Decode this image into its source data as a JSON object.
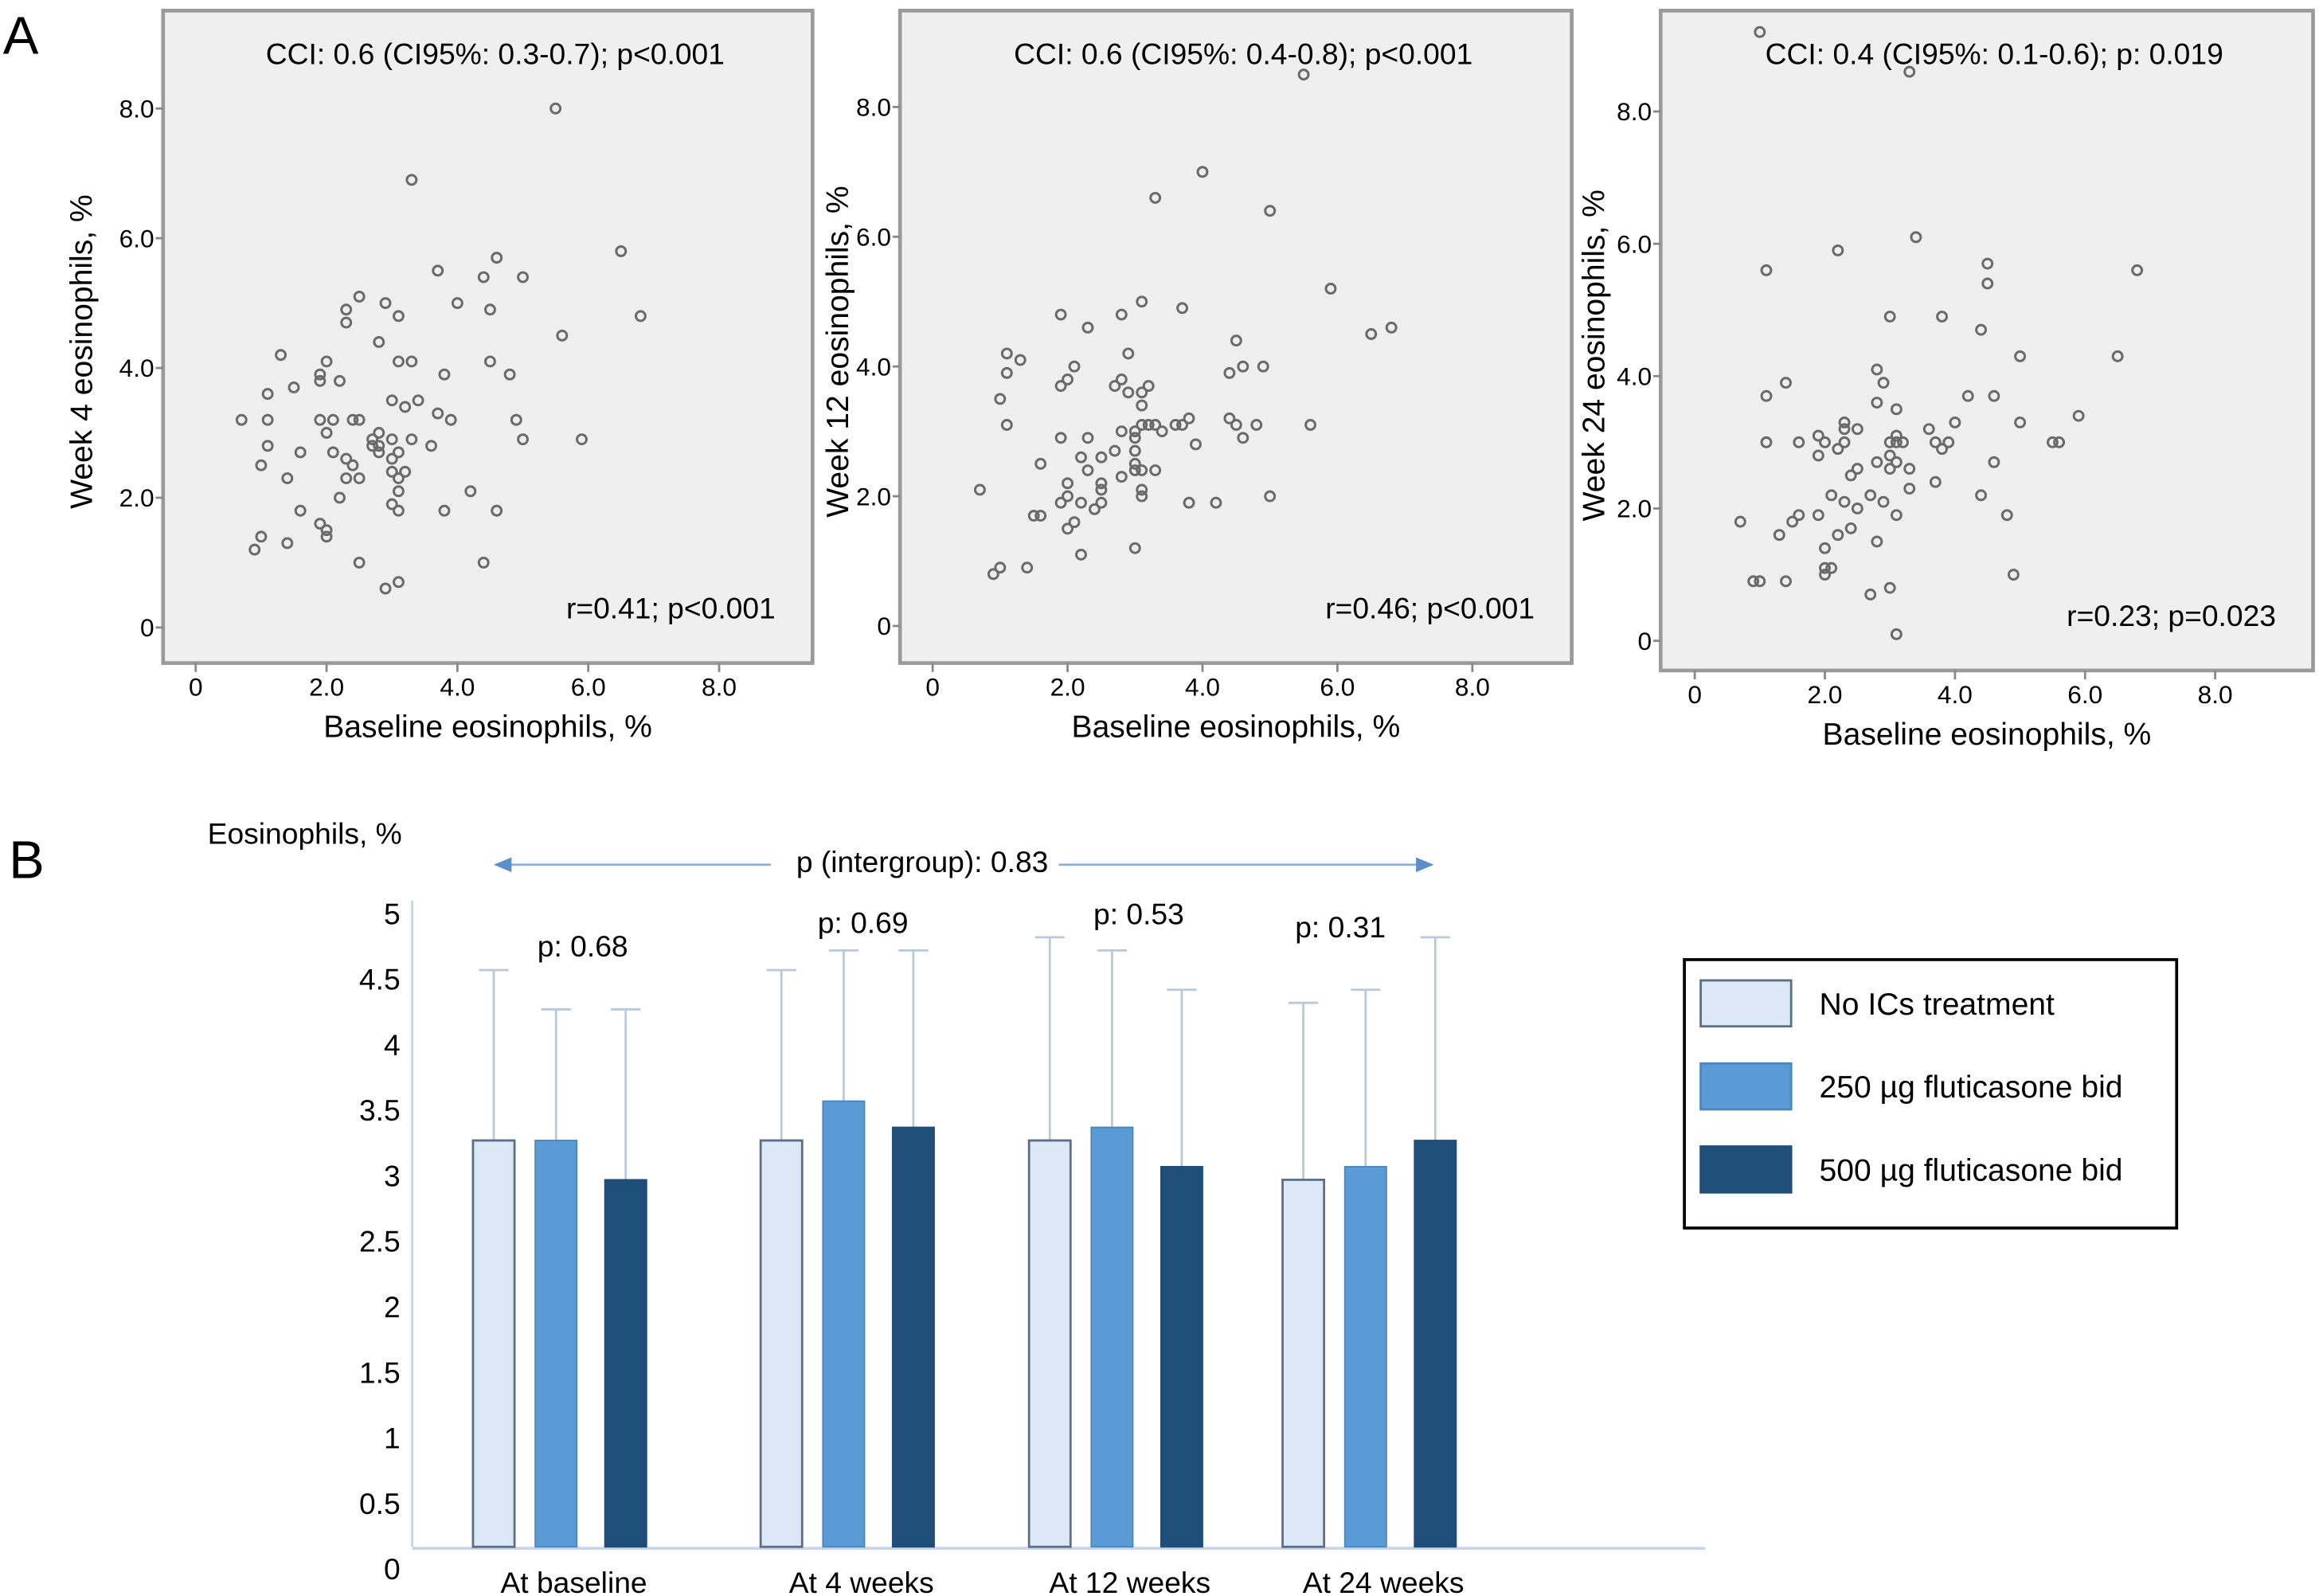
{
  "figure": {
    "panel_a_label": "A",
    "panel_b_label": "B"
  },
  "chart_data": [
    {
      "type": "scatter",
      "panel": "A",
      "title": "CCI: 0.6 (CI95%: 0.3-0.7); p<0.001",
      "annotation": "r=0.41; p<0.001",
      "xlabel": "Baseline eosinophils, %",
      "ylabel": "Week 4 eosinophils, %",
      "xlim": [
        -0.5,
        9.5
      ],
      "ylim": [
        -0.55,
        9.4
      ],
      "xticks": [
        "0",
        "2.0",
        "4.0",
        "6.0",
        "8.0"
      ],
      "xtick_values": [
        0,
        2,
        4,
        6,
        8
      ],
      "yticks": [
        "0",
        "2.0",
        "4.0",
        "6.0",
        "8.0"
      ],
      "ytick_values": [
        0,
        2,
        4,
        6,
        8
      ],
      "points": [
        [
          5.5,
          8.0
        ],
        [
          3.3,
          6.9
        ],
        [
          6.5,
          5.8
        ],
        [
          4.6,
          5.7
        ],
        [
          3.7,
          5.5
        ],
        [
          4.4,
          5.4
        ],
        [
          5.0,
          5.4
        ],
        [
          2.5,
          5.1
        ],
        [
          2.9,
          5.0
        ],
        [
          4.0,
          5.0
        ],
        [
          2.3,
          4.9
        ],
        [
          4.5,
          4.9
        ],
        [
          3.1,
          4.8
        ],
        [
          6.8,
          4.8
        ],
        [
          2.3,
          4.7
        ],
        [
          5.6,
          4.5
        ],
        [
          2.8,
          4.4
        ],
        [
          1.3,
          4.2
        ],
        [
          2.0,
          4.1
        ],
        [
          3.1,
          4.1
        ],
        [
          3.3,
          4.1
        ],
        [
          4.5,
          4.1
        ],
        [
          1.9,
          3.9
        ],
        [
          1.9,
          3.8
        ],
        [
          2.2,
          3.8
        ],
        [
          3.8,
          3.9
        ],
        [
          4.8,
          3.9
        ],
        [
          1.5,
          3.7
        ],
        [
          1.1,
          3.6
        ],
        [
          3.0,
          3.5
        ],
        [
          3.4,
          3.5
        ],
        [
          3.2,
          3.4
        ],
        [
          3.7,
          3.3
        ],
        [
          0.7,
          3.2
        ],
        [
          1.1,
          3.2
        ],
        [
          1.9,
          3.2
        ],
        [
          2.1,
          3.2
        ],
        [
          2.4,
          3.2
        ],
        [
          2.5,
          3.2
        ],
        [
          3.9,
          3.2
        ],
        [
          4.9,
          3.2
        ],
        [
          2.0,
          3.0
        ],
        [
          2.8,
          3.0
        ],
        [
          2.7,
          2.9
        ],
        [
          3.0,
          2.9
        ],
        [
          3.3,
          2.9
        ],
        [
          5.0,
          2.9
        ],
        [
          5.9,
          2.9
        ],
        [
          1.1,
          2.8
        ],
        [
          2.7,
          2.8
        ],
        [
          2.8,
          2.8
        ],
        [
          3.6,
          2.8
        ],
        [
          1.6,
          2.7
        ],
        [
          2.1,
          2.7
        ],
        [
          2.8,
          2.7
        ],
        [
          3.1,
          2.7
        ],
        [
          2.3,
          2.6
        ],
        [
          3.0,
          2.6
        ],
        [
          1.0,
          2.5
        ],
        [
          2.4,
          2.5
        ],
        [
          3.0,
          2.4
        ],
        [
          3.2,
          2.4
        ],
        [
          3.1,
          2.3
        ],
        [
          1.4,
          2.3
        ],
        [
          2.3,
          2.3
        ],
        [
          2.5,
          2.3
        ],
        [
          3.1,
          2.1
        ],
        [
          4.2,
          2.1
        ],
        [
          2.2,
          2.0
        ],
        [
          3.0,
          1.9
        ],
        [
          1.6,
          1.8
        ],
        [
          3.1,
          1.8
        ],
        [
          3.8,
          1.8
        ],
        [
          4.6,
          1.8
        ],
        [
          1.9,
          1.6
        ],
        [
          2.0,
          1.5
        ],
        [
          2.0,
          1.4
        ],
        [
          1.0,
          1.4
        ],
        [
          1.4,
          1.3
        ],
        [
          0.9,
          1.2
        ],
        [
          2.5,
          1.0
        ],
        [
          4.4,
          1.0
        ],
        [
          3.1,
          0.7
        ],
        [
          2.9,
          0.6
        ]
      ]
    },
    {
      "type": "scatter",
      "panel": "A",
      "title": "CCI: 0.6 (CI95%: 0.4-0.8); p<0.001",
      "annotation": "r=0.46; p<0.001",
      "xlabel": "Baseline eosinophils, %",
      "ylabel": "Week 12 eosinophils, %",
      "xlim": [
        -0.5,
        9.5
      ],
      "ylim": [
        -0.5,
        9.4
      ],
      "xticks": [
        "0",
        "2.0",
        "4.0",
        "6.0",
        "8.0"
      ],
      "xtick_values": [
        0,
        2,
        4,
        6,
        8
      ],
      "yticks": [
        "0",
        "2.0",
        "4.0",
        "6.0",
        "8.0"
      ],
      "ytick_values": [
        0,
        2,
        4,
        6,
        8
      ],
      "points": [
        [
          5.5,
          8.5
        ],
        [
          4.0,
          7.0
        ],
        [
          3.3,
          6.6
        ],
        [
          5.0,
          6.4
        ],
        [
          5.9,
          5.2
        ],
        [
          3.1,
          5.0
        ],
        [
          3.7,
          4.9
        ],
        [
          1.9,
          4.8
        ],
        [
          2.8,
          4.8
        ],
        [
          2.3,
          4.6
        ],
        [
          6.8,
          4.6
        ],
        [
          6.5,
          4.5
        ],
        [
          4.5,
          4.4
        ],
        [
          2.9,
          4.2
        ],
        [
          1.1,
          4.2
        ],
        [
          1.3,
          4.1
        ],
        [
          2.1,
          4.0
        ],
        [
          4.6,
          4.0
        ],
        [
          4.9,
          4.0
        ],
        [
          1.1,
          3.9
        ],
        [
          4.4,
          3.9
        ],
        [
          2.0,
          3.8
        ],
        [
          2.8,
          3.8
        ],
        [
          1.9,
          3.7
        ],
        [
          2.7,
          3.7
        ],
        [
          3.2,
          3.7
        ],
        [
          2.9,
          3.6
        ],
        [
          3.1,
          3.6
        ],
        [
          1.0,
          3.5
        ],
        [
          3.1,
          3.4
        ],
        [
          3.8,
          3.2
        ],
        [
          4.4,
          3.2
        ],
        [
          1.1,
          3.1
        ],
        [
          3.1,
          3.1
        ],
        [
          3.2,
          3.1
        ],
        [
          3.3,
          3.1
        ],
        [
          3.6,
          3.1
        ],
        [
          3.7,
          3.1
        ],
        [
          4.5,
          3.1
        ],
        [
          4.8,
          3.1
        ],
        [
          5.6,
          3.1
        ],
        [
          2.8,
          3.0
        ],
        [
          3.0,
          3.0
        ],
        [
          3.4,
          3.0
        ],
        [
          1.9,
          2.9
        ],
        [
          2.3,
          2.9
        ],
        [
          3.0,
          2.9
        ],
        [
          4.6,
          2.9
        ],
        [
          3.9,
          2.8
        ],
        [
          2.7,
          2.7
        ],
        [
          3.0,
          2.7
        ],
        [
          2.2,
          2.6
        ],
        [
          2.5,
          2.6
        ],
        [
          1.6,
          2.5
        ],
        [
          3.0,
          2.5
        ],
        [
          2.3,
          2.4
        ],
        [
          3.0,
          2.4
        ],
        [
          3.1,
          2.4
        ],
        [
          3.3,
          2.4
        ],
        [
          2.8,
          2.3
        ],
        [
          2.0,
          2.2
        ],
        [
          2.5,
          2.2
        ],
        [
          2.5,
          2.1
        ],
        [
          3.1,
          2.1
        ],
        [
          0.7,
          2.1
        ],
        [
          2.0,
          2.0
        ],
        [
          3.1,
          2.0
        ],
        [
          5.0,
          2.0
        ],
        [
          1.9,
          1.9
        ],
        [
          2.2,
          1.9
        ],
        [
          2.5,
          1.9
        ],
        [
          3.8,
          1.9
        ],
        [
          4.2,
          1.9
        ],
        [
          2.4,
          1.8
        ],
        [
          1.5,
          1.7
        ],
        [
          1.6,
          1.7
        ],
        [
          2.1,
          1.6
        ],
        [
          2.0,
          1.5
        ],
        [
          3.0,
          1.2
        ],
        [
          2.2,
          1.1
        ],
        [
          1.0,
          0.9
        ],
        [
          1.4,
          0.9
        ],
        [
          0.9,
          0.8
        ]
      ]
    },
    {
      "type": "scatter",
      "panel": "A",
      "title": "CCI: 0.4 (CI95%: 0.1-0.6); p: 0.019",
      "annotation": "r=0.23; p=0.023",
      "xlabel": "Baseline eosinophils, %",
      "ylabel": "Week 24 eosinophils, %",
      "xlim": [
        -0.5,
        9.6
      ],
      "ylim": [
        -0.5,
        9.4
      ],
      "xticks": [
        "0",
        "2.0",
        "4.0",
        "6.0",
        "8.0"
      ],
      "xtick_values": [
        0,
        2,
        4,
        6,
        8
      ],
      "yticks": [
        "0",
        "2.0",
        "4.0",
        "6.0",
        "8.0"
      ],
      "ytick_values": [
        0,
        2,
        4,
        6,
        8
      ],
      "points": [
        [
          1.0,
          9.2
        ],
        [
          3.3,
          8.6
        ],
        [
          3.4,
          6.1
        ],
        [
          2.2,
          5.9
        ],
        [
          4.5,
          5.7
        ],
        [
          1.1,
          5.6
        ],
        [
          6.8,
          5.6
        ],
        [
          4.5,
          5.4
        ],
        [
          3.0,
          4.9
        ],
        [
          3.8,
          4.9
        ],
        [
          4.4,
          4.7
        ],
        [
          5.0,
          4.3
        ],
        [
          6.5,
          4.3
        ],
        [
          2.8,
          4.1
        ],
        [
          1.4,
          3.9
        ],
        [
          2.9,
          3.9
        ],
        [
          1.1,
          3.7
        ],
        [
          4.2,
          3.7
        ],
        [
          4.6,
          3.7
        ],
        [
          2.8,
          3.6
        ],
        [
          3.1,
          3.5
        ],
        [
          5.9,
          3.4
        ],
        [
          2.3,
          3.3
        ],
        [
          4.0,
          3.3
        ],
        [
          5.0,
          3.3
        ],
        [
          2.3,
          3.2
        ],
        [
          2.5,
          3.2
        ],
        [
          3.6,
          3.2
        ],
        [
          1.9,
          3.1
        ],
        [
          3.1,
          3.1
        ],
        [
          1.1,
          3.0
        ],
        [
          1.6,
          3.0
        ],
        [
          2.0,
          3.0
        ],
        [
          2.3,
          3.0
        ],
        [
          3.0,
          3.0
        ],
        [
          3.1,
          3.0
        ],
        [
          3.2,
          3.0
        ],
        [
          3.7,
          3.0
        ],
        [
          3.9,
          3.0
        ],
        [
          5.5,
          3.0
        ],
        [
          5.6,
          3.0
        ],
        [
          2.2,
          2.9
        ],
        [
          3.8,
          2.9
        ],
        [
          1.9,
          2.8
        ],
        [
          3.0,
          2.8
        ],
        [
          2.8,
          2.7
        ],
        [
          3.1,
          2.7
        ],
        [
          4.6,
          2.7
        ],
        [
          2.5,
          2.6
        ],
        [
          3.0,
          2.6
        ],
        [
          3.3,
          2.6
        ],
        [
          2.4,
          2.5
        ],
        [
          3.7,
          2.4
        ],
        [
          3.3,
          2.3
        ],
        [
          2.1,
          2.2
        ],
        [
          2.7,
          2.2
        ],
        [
          4.4,
          2.2
        ],
        [
          2.3,
          2.1
        ],
        [
          2.9,
          2.1
        ],
        [
          2.5,
          2.0
        ],
        [
          1.6,
          1.9
        ],
        [
          1.9,
          1.9
        ],
        [
          3.1,
          1.9
        ],
        [
          4.8,
          1.9
        ],
        [
          0.7,
          1.8
        ],
        [
          1.5,
          1.8
        ],
        [
          2.4,
          1.7
        ],
        [
          1.3,
          1.6
        ],
        [
          2.2,
          1.6
        ],
        [
          2.8,
          1.5
        ],
        [
          2.0,
          1.4
        ],
        [
          2.0,
          1.1
        ],
        [
          2.1,
          1.1
        ],
        [
          2.0,
          1.0
        ],
        [
          4.9,
          1.0
        ],
        [
          0.9,
          0.9
        ],
        [
          1.0,
          0.9
        ],
        [
          1.4,
          0.9
        ],
        [
          3.0,
          0.8
        ],
        [
          2.7,
          0.7
        ],
        [
          3.1,
          0.1
        ]
      ]
    },
    {
      "type": "bar",
      "panel": "B",
      "ylabel": "Eosinophils, %",
      "ylim": [
        0,
        5
      ],
      "yticks": [
        "0",
        "0.5",
        "1",
        "1.5",
        "2",
        "2.5",
        "3",
        "3.5",
        "4",
        "4.5",
        "5"
      ],
      "ytick_values": [
        0,
        0.5,
        1,
        1.5,
        2,
        2.5,
        3,
        3.5,
        4,
        4.5,
        5
      ],
      "categories": [
        "At baseline",
        "At 4 weeks",
        "At 12 weeks",
        "At 24 weeks"
      ],
      "intergroup_label": "p (intergroup): 0.83",
      "group_p_labels": [
        "p: 0.68",
        "p: 0.69",
        "p: 0.53",
        "p: 0.31"
      ],
      "series": [
        {
          "name": "No ICs treatment",
          "color": "#dce8f6",
          "stroke": "#5a6f85",
          "values": [
            3.1,
            3.1,
            3.1,
            2.8
          ],
          "error_upper": [
            4.4,
            4.4,
            4.65,
            4.15
          ]
        },
        {
          "name": "250 µg fluticasone bid",
          "color": "#5b9bd5",
          "stroke": "#4a86bf",
          "values": [
            3.1,
            3.4,
            3.2,
            2.9
          ],
          "error_upper": [
            4.1,
            4.55,
            4.55,
            4.25
          ]
        },
        {
          "name": "500 µg fluticasone bid",
          "color": "#1f4e79",
          "stroke": "#1f4e79",
          "values": [
            2.8,
            3.2,
            2.9,
            3.1
          ],
          "error_upper": [
            4.1,
            4.55,
            4.25,
            4.65
          ]
        }
      ],
      "legend_position": "right"
    }
  ]
}
